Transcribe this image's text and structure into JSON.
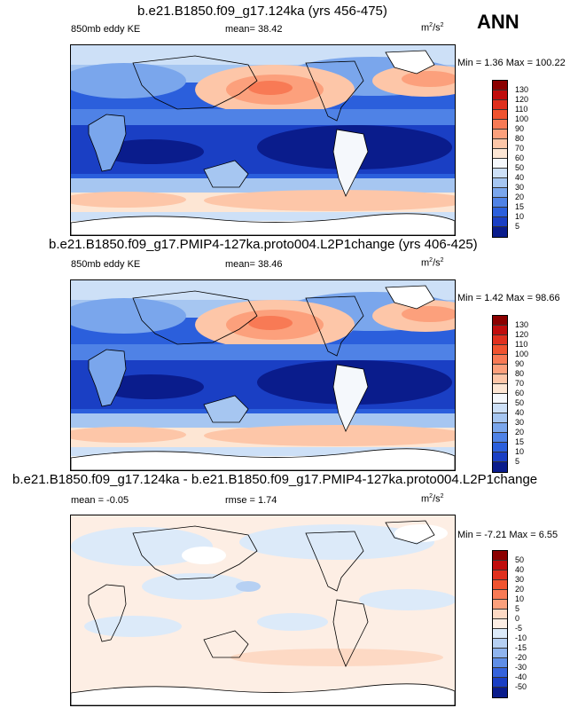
{
  "season": "ANN",
  "panels": [
    {
      "title": "b.e21.B1850.f09_g17.124ka (yrs 456-475)",
      "left_label": "850mb eddy KE",
      "center_label": "mean=  38.42",
      "units_base": "m",
      "units_exp": "2",
      "units_tail": "/s",
      "units_exp2": "2",
      "minmax": "Min =   1.36 Max = 100.22",
      "colorbar": {
        "labels": [
          "130",
          "120",
          "110",
          "100",
          "90",
          "80",
          "70",
          "60",
          "50",
          "40",
          "30",
          "20",
          "15",
          "10",
          "5"
        ],
        "colors": [
          "#8b0000",
          "#c00d0d",
          "#e0301e",
          "#f0532f",
          "#f87a55",
          "#fca07c",
          "#fdc6a8",
          "#fde6d4",
          "#f5f8fc",
          "#cde0f7",
          "#a6c6f1",
          "#7aa6ec",
          "#4f82e6",
          "#2b5fdc",
          "#1a3fc4",
          "#0a1c8c"
        ]
      }
    },
    {
      "title": "b.e21.B1850.f09_g17.PMIP4-127ka.proto004.L2P1change (yrs 406-425)",
      "left_label": "850mb eddy KE",
      "center_label": "mean=  38.46",
      "units_base": "m",
      "units_exp": "2",
      "units_tail": "/s",
      "units_exp2": "2",
      "minmax": "Min =   1.42 Max =  98.66",
      "colorbar": {
        "labels": [
          "130",
          "120",
          "110",
          "100",
          "90",
          "80",
          "70",
          "60",
          "50",
          "40",
          "30",
          "20",
          "15",
          "10",
          "5"
        ],
        "colors": [
          "#8b0000",
          "#c00d0d",
          "#e0301e",
          "#f0532f",
          "#f87a55",
          "#fca07c",
          "#fdc6a8",
          "#fde6d4",
          "#f5f8fc",
          "#cde0f7",
          "#a6c6f1",
          "#7aa6ec",
          "#4f82e6",
          "#2b5fdc",
          "#1a3fc4",
          "#0a1c8c"
        ]
      }
    },
    {
      "title": "b.e21.B1850.f09_g17.124ka - b.e21.B1850.f09_g17.PMIP4-127ka.proto004.L2P1change",
      "left_label": "mean =  -0.05",
      "center_label": "rmse =   1.74",
      "units_base": "m",
      "units_exp": "2",
      "units_tail": "/s",
      "units_exp2": "2",
      "minmax": "Min =  -7.21 Max =   6.55",
      "colorbar": {
        "labels": [
          "50",
          "40",
          "30",
          "20",
          "10",
          "5",
          "0",
          "-5",
          "-10",
          "-15",
          "-20",
          "-30",
          "-40",
          "-50"
        ],
        "colors": [
          "#8b0000",
          "#c00d0d",
          "#e0301e",
          "#f0532f",
          "#f87a55",
          "#fca07c",
          "#fdd9c4",
          "#fdeee4",
          "#dceaf9",
          "#b6d0f3",
          "#8fb4ee",
          "#5f8ee7",
          "#3563dc",
          "#1a3fc4",
          "#0a1c8c"
        ]
      }
    }
  ]
}
